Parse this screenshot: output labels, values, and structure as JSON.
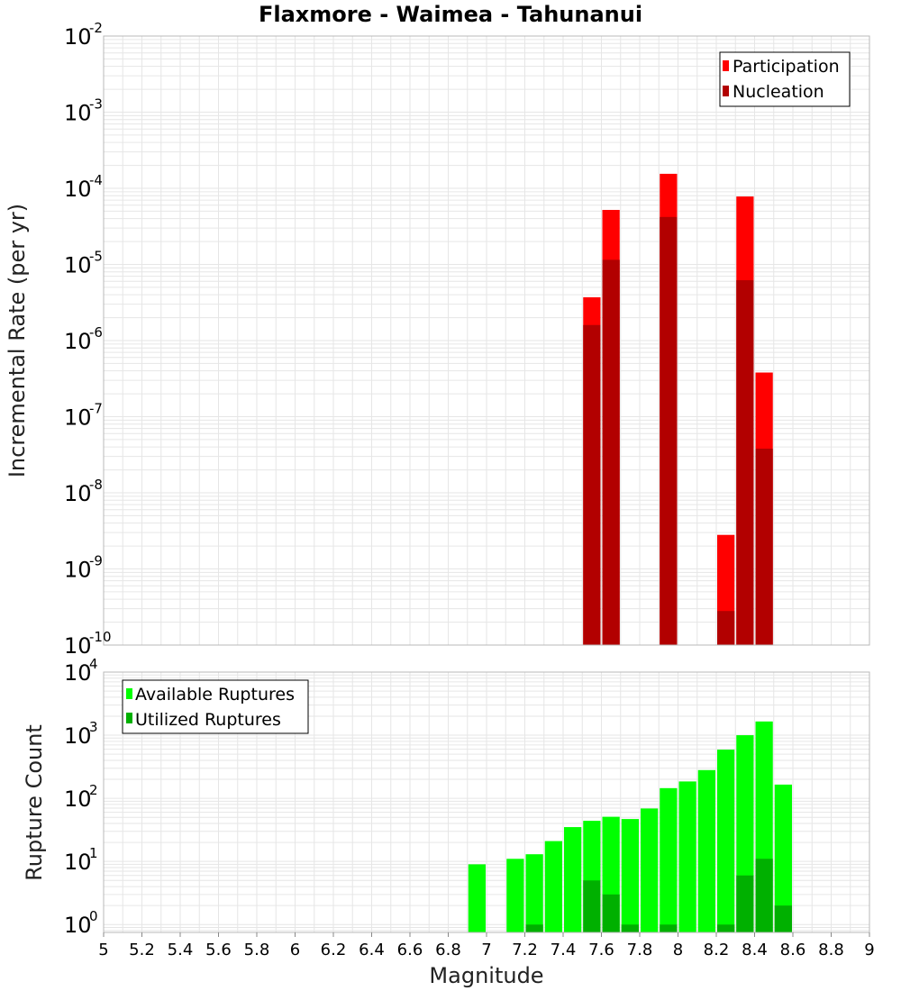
{
  "title": "Flaxmore - Waimea - Tahunanui",
  "colors": {
    "participation": "#ff0000",
    "nucleation": "#b20000",
    "available": "#00ff00",
    "utilized": "#00b000",
    "grid": "#e6e6e6",
    "frame": "#b8b8b8"
  },
  "chart_data": [
    {
      "type": "bar",
      "xlabel": "Magnitude",
      "ylabel": "Incremental Rate (per yr)",
      "xlim": [
        5,
        9
      ],
      "ylim": [
        1e-10,
        0.01
      ],
      "yscale": "log",
      "grid": true,
      "legend_position": "top-right",
      "y_ticks": [
        {
          "base": "10",
          "exp": "-2",
          "value": 0.01
        },
        {
          "base": "10",
          "exp": "-3",
          "value": 0.001
        },
        {
          "base": "10",
          "exp": "-4",
          "value": 0.0001
        },
        {
          "base": "10",
          "exp": "-5",
          "value": 1e-05
        },
        {
          "base": "10",
          "exp": "-6",
          "value": 1e-06
        },
        {
          "base": "10",
          "exp": "-7",
          "value": 1e-07
        },
        {
          "base": "10",
          "exp": "-8",
          "value": 1e-08
        },
        {
          "base": "10",
          "exp": "-9",
          "value": 1e-09
        },
        {
          "base": "10",
          "exp": "-10",
          "value": 1e-10
        }
      ],
      "series": [
        {
          "name": "Participation",
          "x": [
            7.55,
            7.65,
            7.95,
            8.25,
            8.35,
            8.45
          ],
          "values": [
            3.7e-06,
            5.2e-05,
            0.000155,
            2.8e-09,
            7.8e-05,
            3.8e-07
          ]
        },
        {
          "name": "Nucleation",
          "x": [
            7.55,
            7.65,
            7.95,
            8.25,
            8.35,
            8.45
          ],
          "values": [
            1.6e-06,
            1.15e-05,
            4.2e-05,
            2.8e-10,
            6.2e-06,
            3.8e-08
          ]
        }
      ]
    },
    {
      "type": "bar",
      "xlabel": "Magnitude",
      "ylabel": "Rupture Count",
      "xlim": [
        5,
        9
      ],
      "ylim": [
        0.75,
        10000
      ],
      "yscale": "log",
      "grid": true,
      "legend_position": "top-left",
      "x_ticks": [
        "5",
        "5.2",
        "5.4",
        "5.6",
        "5.8",
        "6",
        "6.2",
        "6.4",
        "6.6",
        "6.8",
        "7",
        "7.2",
        "7.4",
        "7.6",
        "7.8",
        "8",
        "8.2",
        "8.4",
        "8.6",
        "8.8",
        "9"
      ],
      "y_ticks": [
        {
          "base": "10",
          "exp": "4",
          "value": 10000
        },
        {
          "base": "10",
          "exp": "3",
          "value": 1000
        },
        {
          "base": "10",
          "exp": "2",
          "value": 100
        },
        {
          "base": "10",
          "exp": "1",
          "value": 10
        },
        {
          "base": "10",
          "exp": "0",
          "value": 1
        }
      ],
      "series": [
        {
          "name": "Available Ruptures",
          "x": [
            6.95,
            7.15,
            7.25,
            7.35,
            7.45,
            7.55,
            7.65,
            7.75,
            7.85,
            7.95,
            8.05,
            8.15,
            8.25,
            8.35,
            8.45,
            8.55
          ],
          "values": [
            9,
            11,
            13,
            21,
            35,
            44,
            51,
            47,
            69,
            145,
            185,
            280,
            590,
            1000,
            1650,
            165
          ]
        },
        {
          "name": "Utilized Ruptures",
          "x": [
            7.25,
            7.55,
            7.65,
            7.75,
            7.95,
            8.25,
            8.35,
            8.45,
            8.55
          ],
          "values": [
            1,
            5,
            3,
            1,
            1,
            1,
            6,
            11,
            2
          ]
        }
      ]
    }
  ]
}
